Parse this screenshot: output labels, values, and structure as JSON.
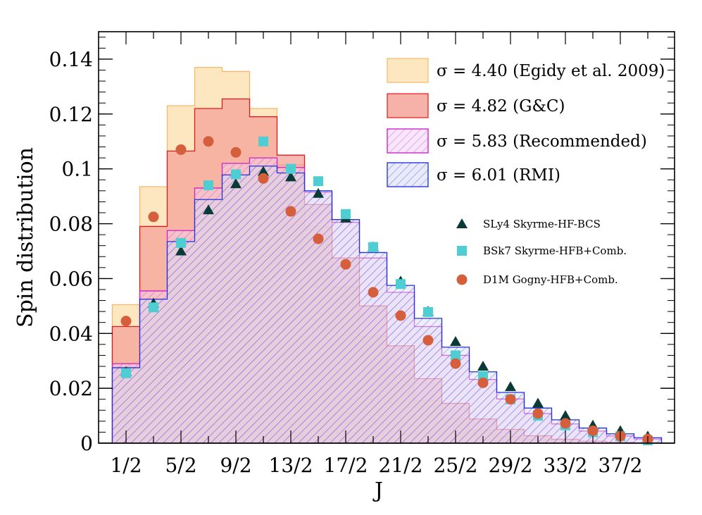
{
  "chart_data": {
    "type": "bar",
    "xlabel": "J",
    "ylabel": "Spin distribution",
    "ylim": [
      0,
      0.15
    ],
    "yticks": [
      "0",
      "0.02",
      "0.04",
      "0.06",
      "0.08",
      "0.1",
      "0.12",
      "0.14"
    ],
    "ytick_values": [
      0,
      0.02,
      0.04,
      0.06,
      0.08,
      0.1,
      0.12,
      0.14
    ],
    "categories": [
      "1/2",
      "3/2",
      "5/2",
      "7/2",
      "9/2",
      "11/2",
      "13/2",
      "15/2",
      "17/2",
      "19/2",
      "21/2",
      "23/2",
      "25/2",
      "27/2",
      "29/2",
      "31/2",
      "33/2",
      "35/2",
      "37/2",
      "39/2"
    ],
    "xtick_labels": [
      "1/2",
      "5/2",
      "9/2",
      "13/2",
      "17/2",
      "21/2",
      "25/2",
      "29/2",
      "33/2",
      "37/2"
    ],
    "legend_position": "top-right",
    "histograms": [
      {
        "name": "σ = 4.40 (Egidy et al. 2009)",
        "fill": "#fde3b5",
        "stroke": "#f4b96a",
        "hatch": false,
        "values": [
          0.0505,
          0.0935,
          0.123,
          0.137,
          0.1355,
          0.122,
          0.1015,
          0.079,
          0.057,
          0.039,
          0.025,
          0.0155,
          0.0088,
          0.0047,
          0.0023,
          0.0011,
          0.0005,
          0.0002,
          0.0001,
          3e-05
        ]
      },
      {
        "name": "σ = 4.82 (G&C)",
        "fill": "#f4a39a",
        "stroke": "#e41a1c",
        "hatch": false,
        "values": [
          0.0425,
          0.079,
          0.1065,
          0.122,
          0.1255,
          0.119,
          0.105,
          0.087,
          0.0675,
          0.05,
          0.0355,
          0.0235,
          0.0145,
          0.0088,
          0.005,
          0.0027,
          0.0014,
          0.0007,
          0.0003,
          0.0001
        ]
      },
      {
        "name": "σ = 5.83 (Recommended)",
        "fill": "#f2d2f7",
        "stroke": "#cc22cc",
        "hatch": true,
        "values": [
          0.029,
          0.0555,
          0.0775,
          0.093,
          0.102,
          0.104,
          0.1005,
          0.0915,
          0.0805,
          0.0675,
          0.055,
          0.0425,
          0.032,
          0.0232,
          0.0161,
          0.0108,
          0.007,
          0.0044,
          0.0026,
          0.0015
        ]
      },
      {
        "name": "σ = 6.01 (RMI)",
        "fill": "#d9dbf5",
        "stroke": "#2233dd",
        "hatch": true,
        "values": [
          0.0275,
          0.0525,
          0.0735,
          0.0888,
          0.0978,
          0.101,
          0.0985,
          0.092,
          0.0815,
          0.0695,
          0.0575,
          0.0455,
          0.035,
          0.026,
          0.0185,
          0.0128,
          0.0085,
          0.0055,
          0.0034,
          0.002
        ]
      }
    ],
    "series": [
      {
        "name": "SLy4 Skyrme-HF-BCS",
        "marker": "triangle",
        "color": "#0a3a36",
        "values": [
          0.026,
          0.051,
          0.07,
          0.085,
          0.0945,
          0.099,
          0.097,
          0.091,
          0.082,
          0.0715,
          0.059,
          0.048,
          0.037,
          0.028,
          0.0205,
          0.0145,
          0.01,
          0.0065,
          0.0045,
          0.0025
        ]
      },
      {
        "name": "BSk7 Skyrme-HFB+Comb.",
        "marker": "square",
        "color": "#4ecdd3",
        "values": [
          0.0255,
          0.0495,
          0.073,
          0.094,
          0.098,
          0.11,
          0.1,
          0.0955,
          0.0835,
          0.0715,
          0.058,
          0.0478,
          0.032,
          0.0245,
          0.016,
          0.01,
          0.0065,
          0.004,
          0.0025,
          0.001
        ]
      },
      {
        "name": "D1M Gogny-HFB+Comb.",
        "marker": "circle",
        "color": "#d55f3c",
        "values": [
          0.0445,
          0.0825,
          0.107,
          0.11,
          0.106,
          0.0965,
          0.0845,
          0.0745,
          0.0652,
          0.055,
          0.0465,
          0.0375,
          0.029,
          0.022,
          0.016,
          0.0108,
          0.0072,
          0.0045,
          0.0026,
          0.0015
        ]
      }
    ]
  }
}
